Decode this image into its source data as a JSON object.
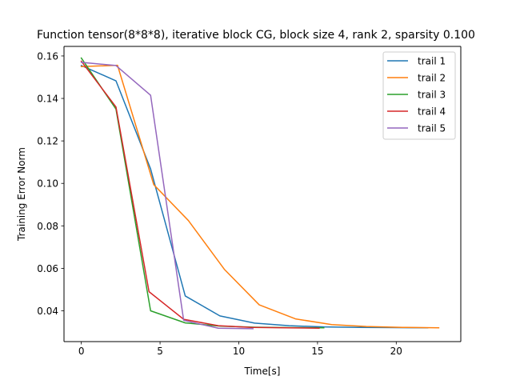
{
  "chart_data": {
    "type": "line",
    "title": "Function tensor(8*8*8), iterative block CG, block size 4, rank 2, sparsity 0.100",
    "xlabel": "Time[s]",
    "ylabel": "Training Error Norm",
    "xlim": [
      -1.1,
      24.1
    ],
    "ylim": [
      0.0255,
      0.1645
    ],
    "xticks": [
      0,
      5,
      10,
      15,
      20
    ],
    "xtick_labels": [
      "0",
      "5",
      "10",
      "15",
      "20"
    ],
    "yticks": [
      0.04,
      0.06,
      0.08,
      0.1,
      0.12,
      0.14,
      0.16
    ],
    "ytick_labels": [
      "0.04",
      "0.06",
      "0.08",
      "0.10",
      "0.12",
      "0.14",
      "0.16"
    ],
    "grid": false,
    "legend_position": "upper right",
    "series": [
      {
        "name": "trail 1",
        "color": "#1f77b4",
        "x": [
          0,
          2.2,
          4.4,
          6.6,
          8.8,
          11.0,
          13.2,
          15.4,
          17.6,
          19.8,
          22.0
        ],
        "y": [
          0.1555,
          0.1483,
          0.1068,
          0.047,
          0.0376,
          0.0342,
          0.033,
          0.0324,
          0.0322,
          0.0321,
          0.032
        ]
      },
      {
        "name": "trail 2",
        "color": "#ff7f0e",
        "x": [
          0,
          2.3,
          4.6,
          6.8,
          9.1,
          11.3,
          13.6,
          15.9,
          18.1,
          20.4,
          22.7
        ],
        "y": [
          0.155,
          0.1556,
          0.0994,
          0.0825,
          0.0594,
          0.0428,
          0.0362,
          0.0335,
          0.0326,
          0.0322,
          0.032
        ]
      },
      {
        "name": "trail 3",
        "color": "#2ca02c",
        "x": [
          0,
          2.2,
          4.4,
          6.6,
          8.8,
          11.0,
          13.2,
          15.4
        ],
        "y": [
          0.159,
          0.135,
          0.04,
          0.0343,
          0.0328,
          0.0323,
          0.0321,
          0.032
        ]
      },
      {
        "name": "trail 4",
        "color": "#d62728",
        "x": [
          0,
          2.2,
          4.3,
          6.5,
          8.7,
          10.8,
          13.0,
          15.1
        ],
        "y": [
          0.1575,
          0.136,
          0.049,
          0.036,
          0.033,
          0.0322,
          0.032,
          0.0318
        ]
      },
      {
        "name": "trail 5",
        "color": "#9467bd",
        "x": [
          0,
          2.2,
          4.4,
          6.5,
          8.7,
          10.9
        ],
        "y": [
          0.157,
          0.1555,
          0.1415,
          0.0355,
          0.0318,
          0.0316
        ]
      }
    ]
  }
}
